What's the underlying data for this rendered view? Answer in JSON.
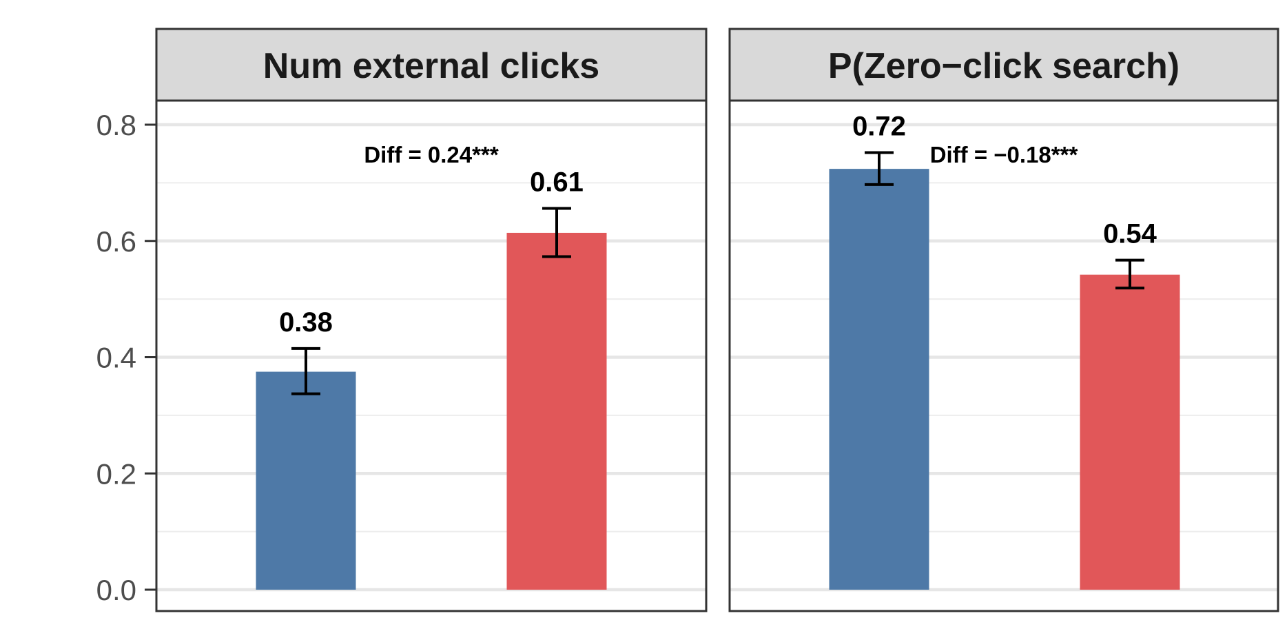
{
  "chart_data": [
    {
      "type": "bar",
      "title": "Num external clicks",
      "categories": [
        "",
        ""
      ],
      "values": [
        0.375,
        0.614
      ],
      "errors": [
        [
          0.337,
          0.415
        ],
        [
          0.573,
          0.656
        ]
      ],
      "value_labels": [
        "0.38",
        "0.61"
      ],
      "colors": [
        "#4e79a7",
        "#e15759"
      ],
      "annotation": "Diff = 0.24***",
      "ylim": [
        0,
        0.85
      ],
      "yticks": [
        0.0,
        0.2,
        0.4,
        0.6,
        0.8
      ],
      "ytick_labels": [
        "0.0",
        "0.2",
        "0.4",
        "0.6",
        "0.8"
      ],
      "grid": true
    },
    {
      "type": "bar",
      "title": "P(Zero−click search)",
      "categories": [
        "",
        ""
      ],
      "values": [
        0.724,
        0.542
      ],
      "errors": [
        [
          0.697,
          0.752
        ],
        [
          0.519,
          0.567
        ]
      ],
      "value_labels": [
        "0.72",
        "0.54"
      ],
      "colors": [
        "#4e79a7",
        "#e15759"
      ],
      "annotation": "Diff = −0.18***",
      "ylim": [
        0,
        0.85
      ],
      "grid": true
    }
  ]
}
